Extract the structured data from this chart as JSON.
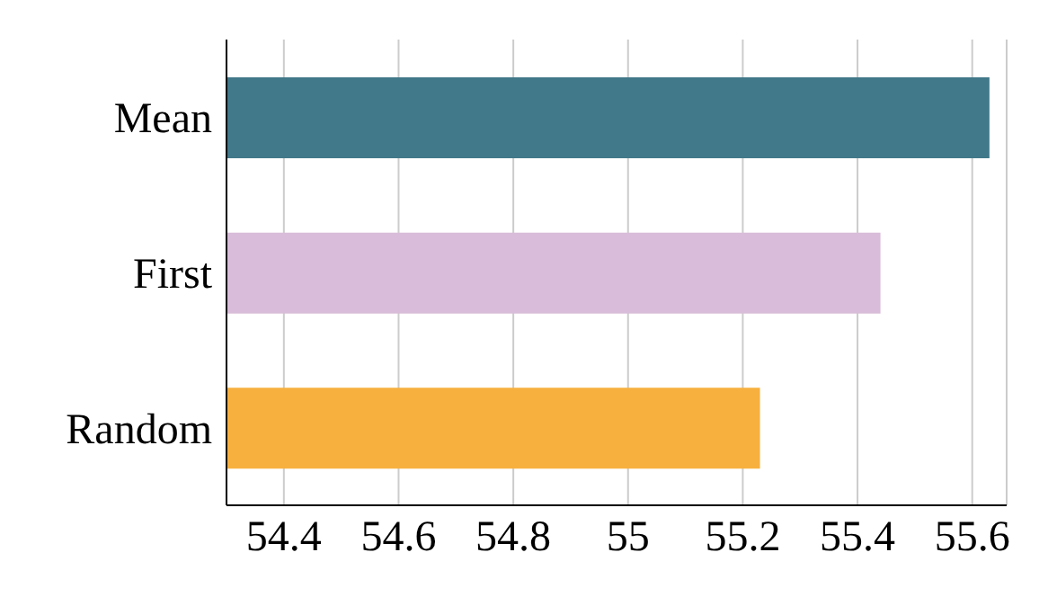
{
  "chart_data": {
    "type": "bar",
    "orientation": "horizontal",
    "categories": [
      "Mean",
      "First",
      "Random"
    ],
    "values": [
      55.63,
      55.44,
      55.23
    ],
    "colors": [
      "#41788a",
      "#d8bcd9",
      "#f7b03e"
    ],
    "xlim": [
      54.3,
      55.66
    ],
    "xticks": [
      54.4,
      54.6,
      54.8,
      55,
      55.2,
      55.4,
      55.6
    ],
    "grid": "x"
  }
}
